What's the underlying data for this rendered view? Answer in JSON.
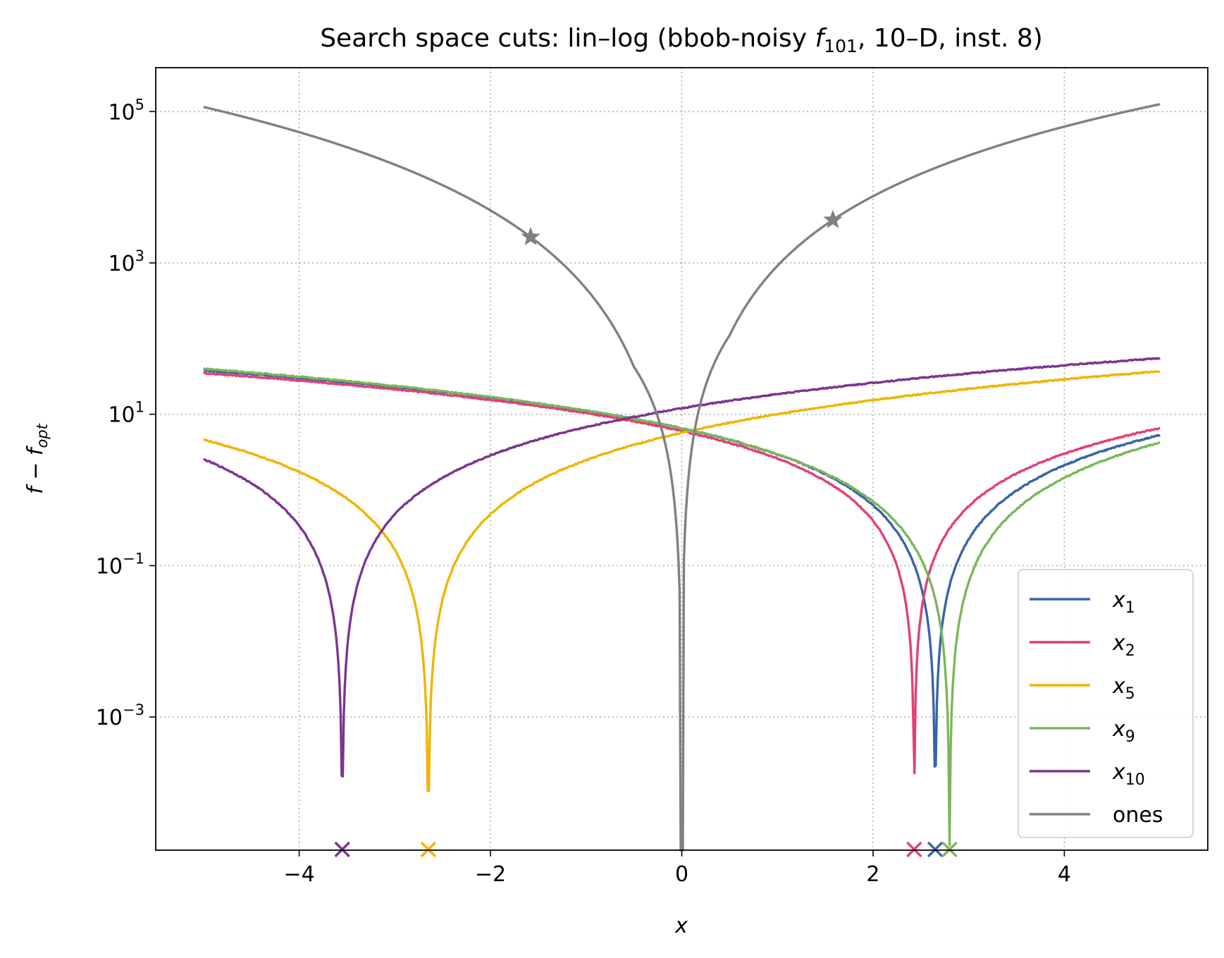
{
  "chart_data": {
    "type": "line",
    "title": "Search space cuts: lin–log (bbob-noisy f₁₀₁, 10–D, inst. 8)",
    "xlabel": "x",
    "ylabel": "f − f_opt",
    "x_scale": "linear",
    "y_scale": "log",
    "xlim": [
      -5.5,
      5.5
    ],
    "ylim_log10": [
      -4.76,
      5.58
    ],
    "x_ticks": [
      -4,
      -2,
      0,
      2,
      4
    ],
    "x_tick_labels": [
      "−4",
      "−2",
      "0",
      "2",
      "4"
    ],
    "y_ticks_log10": [
      5,
      3,
      1,
      -1,
      -3
    ],
    "y_tick_labels": [
      {
        "base": "10",
        "exp": "5"
      },
      {
        "base": "10",
        "exp": "3"
      },
      {
        "base": "10",
        "exp": "1"
      },
      {
        "base": "10",
        "exp": "−1"
      },
      {
        "base": "10",
        "exp": "−3"
      }
    ],
    "grid": true,
    "legend_position": "lower right",
    "series": [
      {
        "name": "x1",
        "label": {
          "base": "x",
          "sub": "1"
        },
        "color": "#3a63a8",
        "optimum_x": 2.65,
        "value_at_0": 6.5,
        "value_at_left_edge": 38,
        "value_at_right_edge": 3.0,
        "dip_min": 5e-05
      },
      {
        "name": "x2",
        "label": {
          "base": "x",
          "sub": "2"
        },
        "color": "#e23f77",
        "optimum_x": 2.43,
        "value_at_0": 6.0,
        "value_at_left_edge": 35,
        "value_at_right_edge": 4.4,
        "dip_min": 5e-05
      },
      {
        "name": "x5",
        "label": {
          "base": "x",
          "sub": "5"
        },
        "color": "#f0b400",
        "optimum_x": -2.65,
        "value_at_0": 5.7,
        "value_at_left_edge": 3.5,
        "value_at_right_edge": 37,
        "dip_min": 5e-05
      },
      {
        "name": "x9",
        "label": {
          "base": "x",
          "sub": "9"
        },
        "color": "#7cb65a",
        "optimum_x": 2.8,
        "value_at_0": 6.5,
        "value_at_left_edge": 40,
        "value_at_right_edge": 2.6,
        "dip_min": 2e-05
      },
      {
        "name": "x10",
        "label": {
          "base": "x",
          "sub": "10"
        },
        "color": "#7b3591",
        "optimum_x": -3.55,
        "value_at_0": 12,
        "value_at_left_edge": 1.6,
        "value_at_right_edge": 55,
        "dip_min": 6e-05
      },
      {
        "name": "ones",
        "label": {
          "base": "ones",
          "sub": ""
        },
        "color": "#808080",
        "optimum_x": 0.0,
        "value_at_left_edge": 115000,
        "value_at_right_edge": 125000,
        "star_points": [
          [
            -1.58,
            2200
          ],
          [
            1.58,
            3700
          ]
        ]
      }
    ]
  }
}
